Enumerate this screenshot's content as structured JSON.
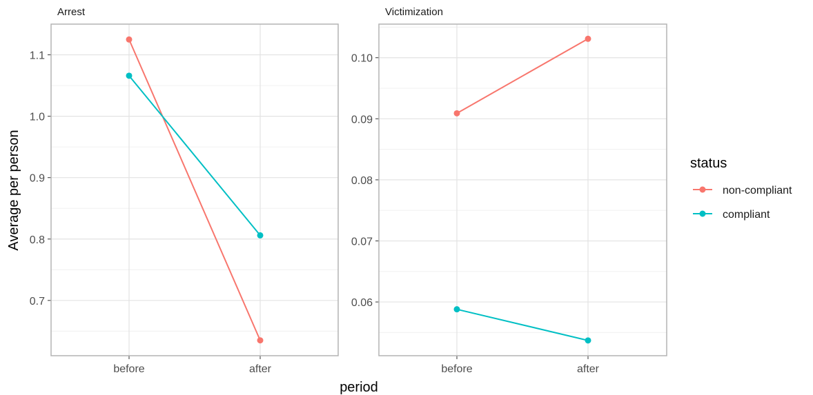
{
  "chart_data": {
    "type": "line",
    "xlabel": "period",
    "ylabel": "Average per person",
    "categories": [
      "before",
      "after"
    ],
    "legend": {
      "title": "status",
      "placement": "right",
      "entries": [
        {
          "name": "non-compliant",
          "color": "#F8766D"
        },
        {
          "name": "compliant",
          "color": "#00BFC4"
        }
      ]
    },
    "grid": true,
    "panels": [
      {
        "title": "Arrest",
        "ylim": [
          0.61,
          1.15
        ],
        "yticks": [
          0.7,
          0.8,
          0.9,
          1.0,
          1.1
        ],
        "yticklabels": [
          "0.7",
          "0.8",
          "0.9",
          "1.0",
          "1.1"
        ],
        "series": [
          {
            "name": "non-compliant",
            "color": "#F8766D",
            "values": [
              1.125,
              0.635
            ]
          },
          {
            "name": "compliant",
            "color": "#00BFC4",
            "values": [
              1.066,
              0.806
            ]
          }
        ]
      },
      {
        "title": "Victimization",
        "ylim": [
          0.0512,
          0.1055
        ],
        "yticks": [
          0.06,
          0.07,
          0.08,
          0.09,
          0.1
        ],
        "yticklabels": [
          "0.06",
          "0.07",
          "0.08",
          "0.09",
          "0.10"
        ],
        "series": [
          {
            "name": "non-compliant",
            "color": "#F8766D",
            "values": [
              0.0909,
              0.1031
            ]
          },
          {
            "name": "compliant",
            "color": "#00BFC4",
            "values": [
              0.0588,
              0.0537
            ]
          }
        ]
      }
    ]
  }
}
